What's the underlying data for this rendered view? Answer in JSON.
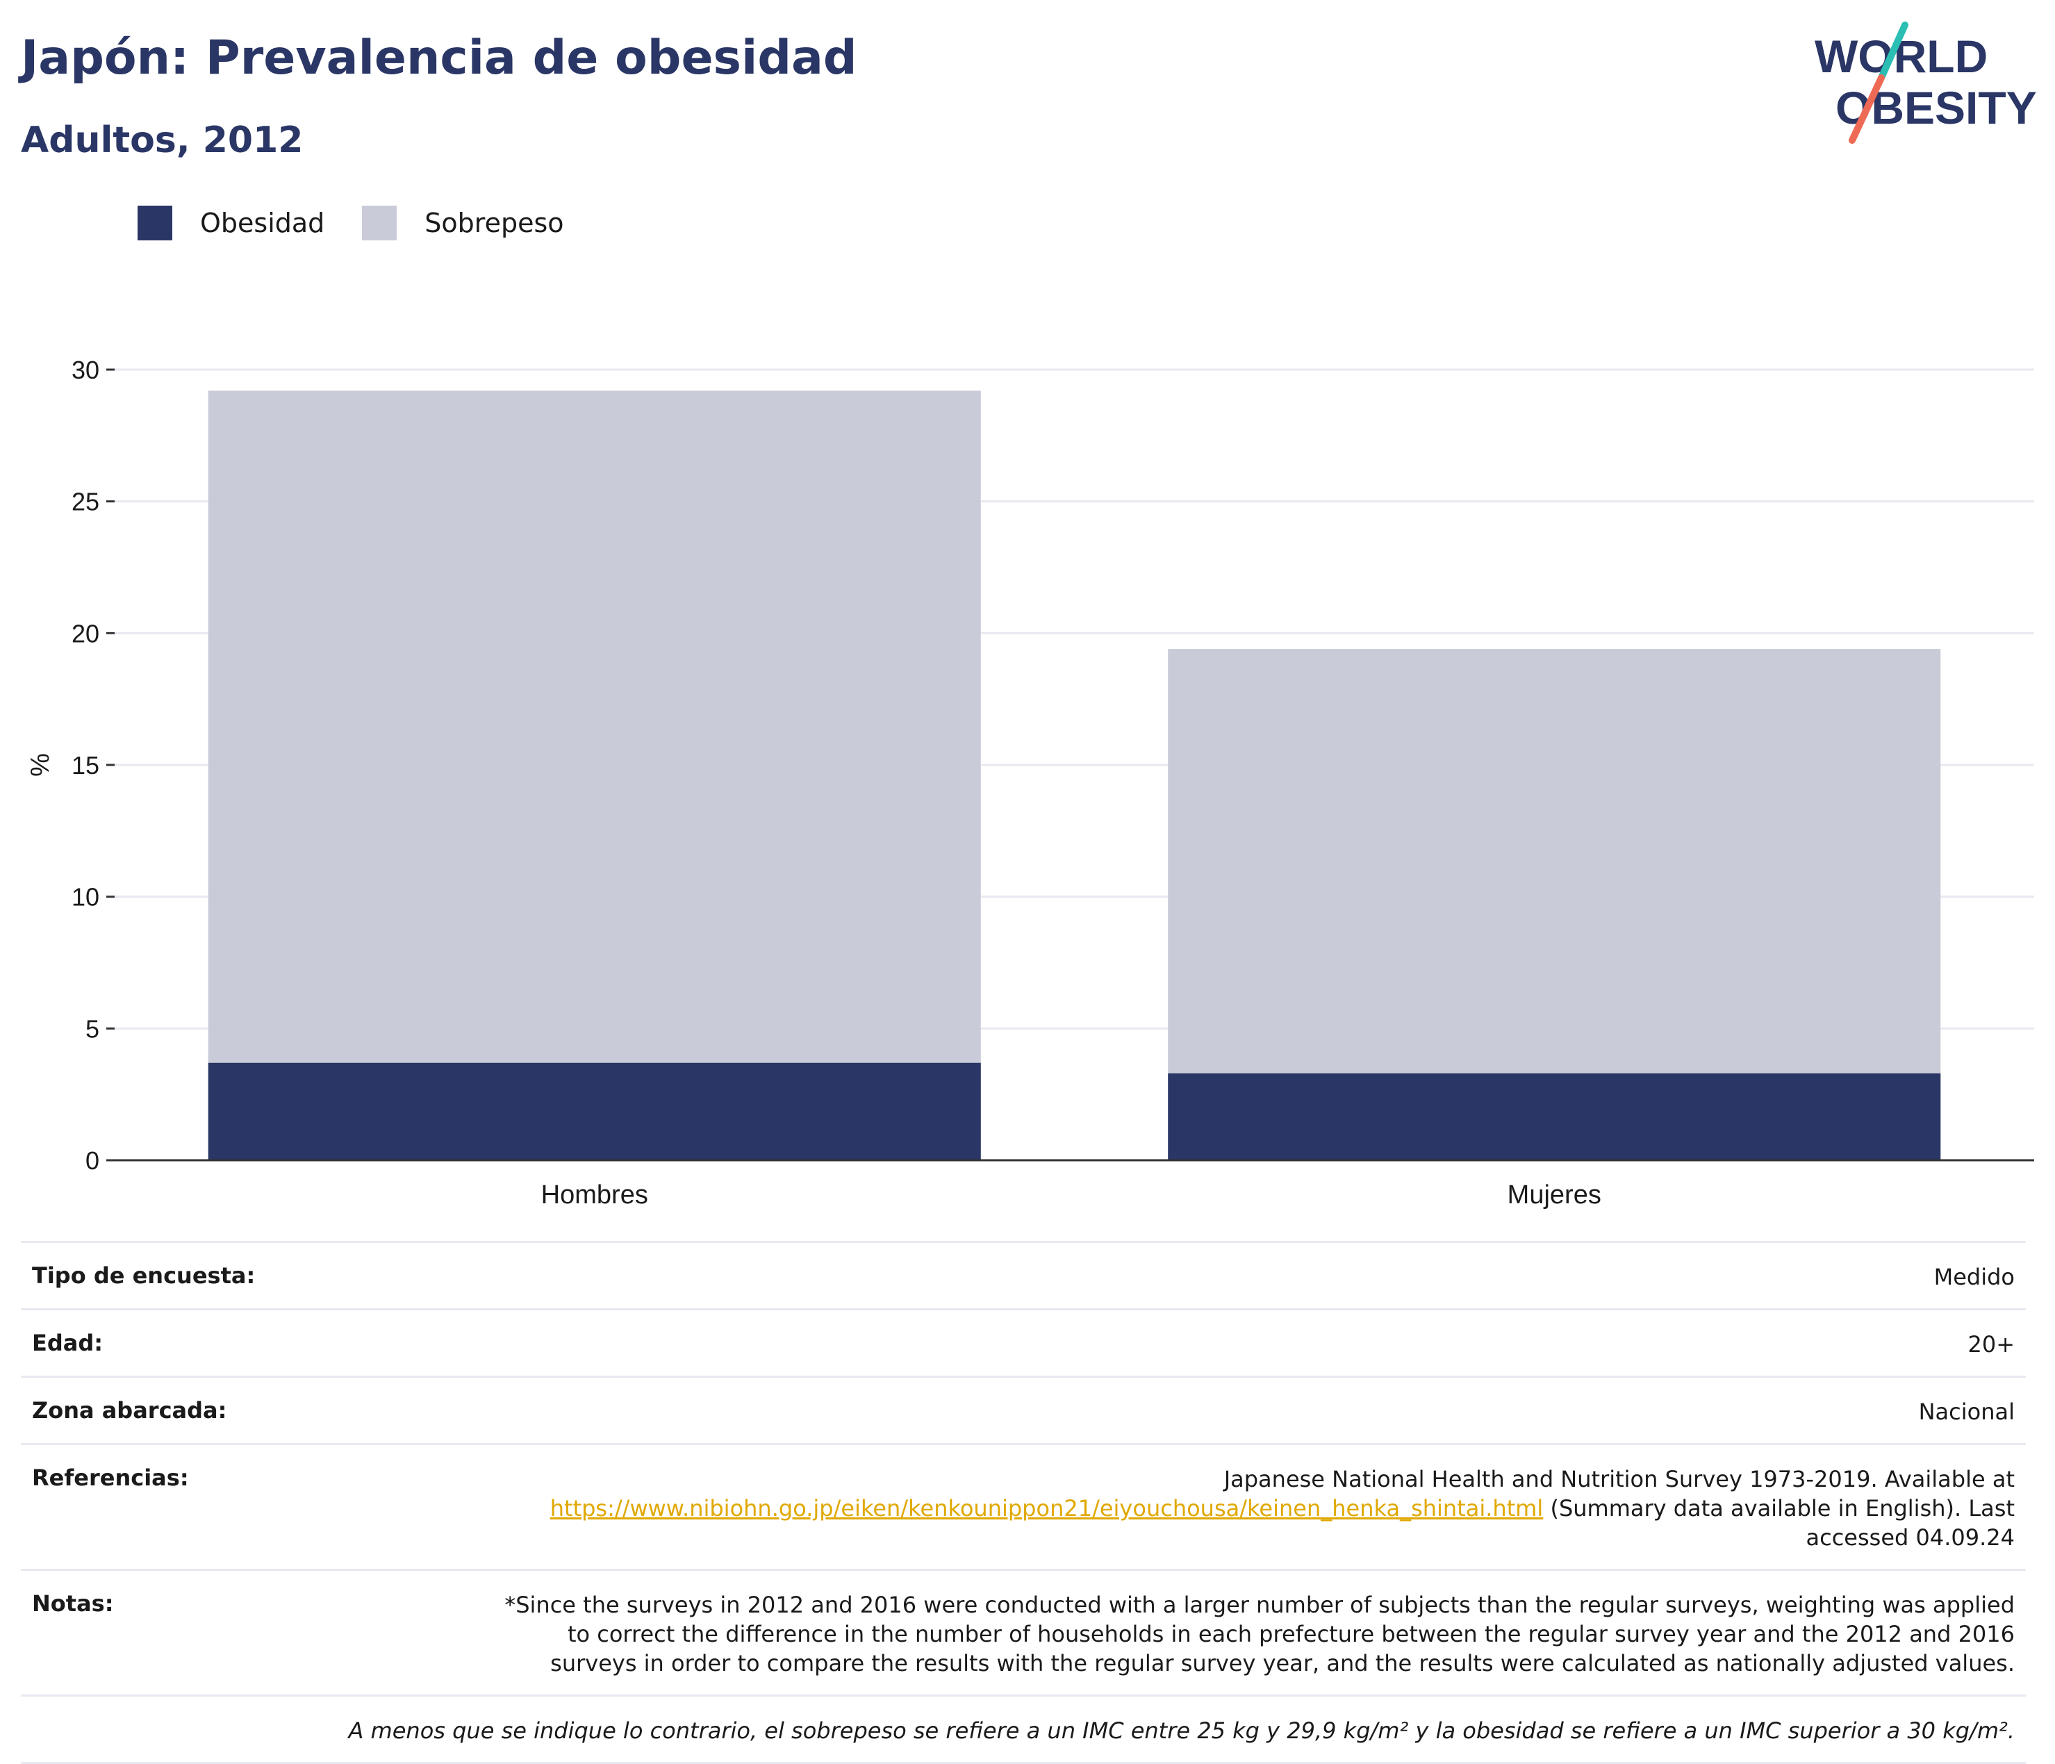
{
  "header": {
    "title": "Japón: Prevalencia de obesidad",
    "subtitle": "Adultos, 2012"
  },
  "logo": {
    "line1": "WORLD",
    "line2": "OBESITY",
    "colors": {
      "text": "#2a3665",
      "slash_top": "#2bbfb4",
      "slash_bottom": "#ee6a55"
    }
  },
  "legend": [
    {
      "label": "Obesidad",
      "color": "#2a3665"
    },
    {
      "label": "Sobrepeso",
      "color": "#c9ccd8"
    }
  ],
  "chart_data": {
    "type": "bar",
    "stacked": true,
    "categories": [
      "Hombres",
      "Mujeres"
    ],
    "series": [
      {
        "name": "Obesidad",
        "values": [
          3.7,
          3.3
        ],
        "color": "#2a3665"
      },
      {
        "name": "Sobrepeso",
        "values": [
          25.5,
          16.1
        ],
        "color": "#c9ccd8"
      }
    ],
    "ylabel": "%",
    "ylim": [
      0,
      30
    ],
    "yticks": [
      0,
      5,
      10,
      15,
      20,
      25,
      30
    ],
    "grid": true,
    "legend_position": "top-left"
  },
  "info": {
    "survey_type": {
      "label": "Tipo de encuesta:",
      "value": "Medido"
    },
    "age": {
      "label": "Edad:",
      "value": "20+"
    },
    "area": {
      "label": "Zona abarcada:",
      "value": "Nacional"
    },
    "references": {
      "label": "Referencias:",
      "text_before": "Japanese National Health and Nutrition Survey 1973-2019. Available at",
      "link": "https://www.nibiohn.go.jp/eiken/kenkounippon21/eiyouchousa/keinen_henka_shintai.html",
      "text_after": "(Summary data available in English). Last accessed 04.09.24"
    },
    "notes": {
      "label": "Notas:",
      "value": "*Since the surveys in 2012 and 2016 were conducted with a larger number of subjects than the regular surveys, weighting was applied to correct the difference in the number of households in each prefecture between the regular survey year and the 2012 and 2016 surveys in order to compare the results with the regular survey year, and the results were calculated as nationally adjusted values."
    },
    "footnote": "A menos que se indique lo contrario, el sobrepeso se refiere a un IMC entre 25 kg y 29,9 kg/m² y la obesidad se refiere a un IMC superior a 30 kg/m²."
  }
}
